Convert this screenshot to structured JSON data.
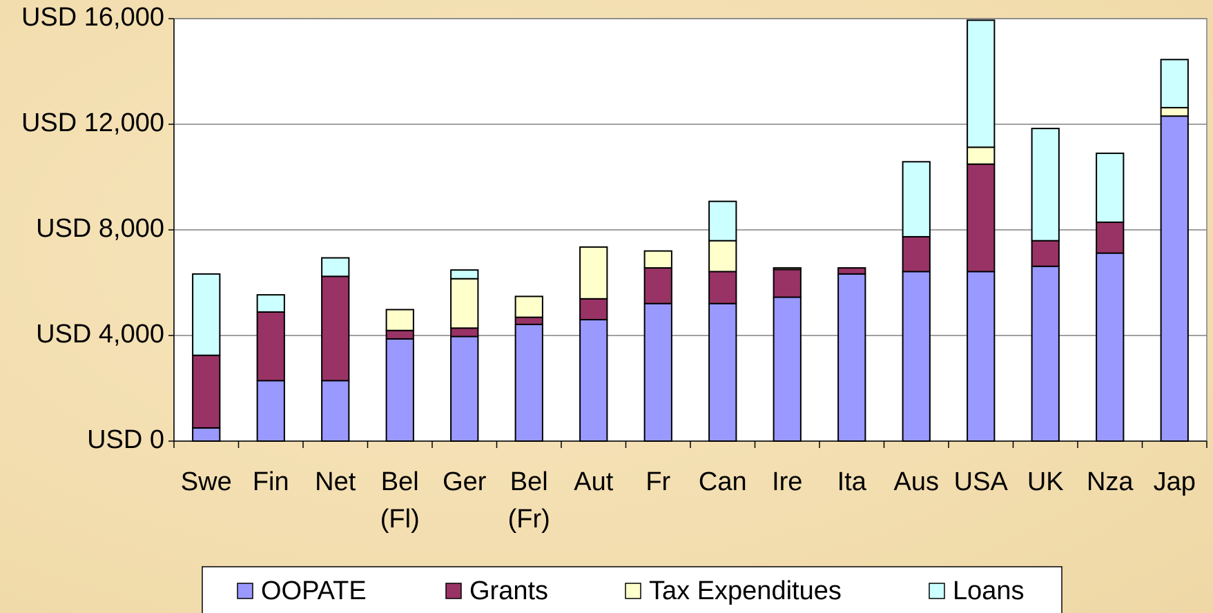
{
  "chart_data": {
    "type": "stacked_bar",
    "categories": [
      "Swe",
      "Fin",
      "Net",
      "Bel (Fl)",
      "Ger",
      "Bel (Fr)",
      "Aut",
      "Fr",
      "Can",
      "Ire",
      "Ita",
      "Aus",
      "USA",
      "UK",
      "Nza",
      "Jap"
    ],
    "series": [
      {
        "name": "OOPATE",
        "color": "#9999ff",
        "values": [
          500,
          2290,
          2290,
          3870,
          3960,
          4420,
          4600,
          5210,
          5210,
          5450,
          6330,
          6420,
          6420,
          6620,
          7120,
          12310
        ]
      },
      {
        "name": "Grants",
        "color": "#993366",
        "values": [
          2750,
          2600,
          3950,
          320,
          320,
          270,
          790,
          1350,
          1210,
          1050,
          230,
          1320,
          4070,
          970,
          1170,
          0
        ]
      },
      {
        "name": "Tax Expenditues",
        "color": "#ffffcc",
        "values": [
          0,
          0,
          0,
          790,
          1870,
          790,
          1960,
          640,
          1170,
          60,
          0,
          0,
          640,
          0,
          0,
          320
        ]
      },
      {
        "name": "Loans",
        "color": "#ccffff",
        "values": [
          3080,
          650,
          700,
          0,
          330,
          0,
          0,
          0,
          1490,
          0,
          0,
          2840,
          4810,
          4250,
          2610,
          1820
        ]
      }
    ],
    "ylim": [
      0,
      16000
    ],
    "yticks": [
      {
        "value": 0,
        "label": "USD 0"
      },
      {
        "value": 4000,
        "label": "USD 4,000"
      },
      {
        "value": 8000,
        "label": "USD 8,000"
      },
      {
        "value": 12000,
        "label": "USD 12,000"
      },
      {
        "value": 16000,
        "label": "USD 16,000"
      }
    ],
    "grid": true,
    "legend": "bottom"
  }
}
